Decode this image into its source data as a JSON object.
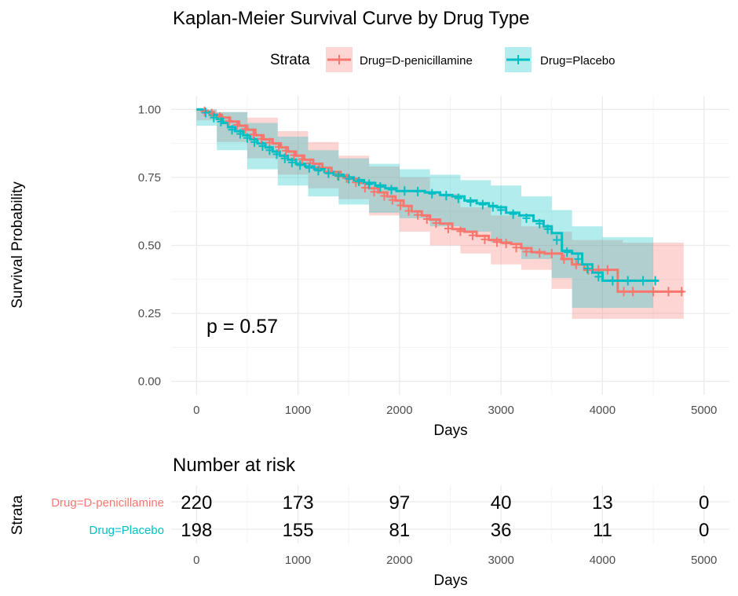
{
  "chart_data": [
    {
      "type": "line",
      "title": "Kaplan-Meier Survival Curve by Drug Type",
      "xlabel": "Days",
      "ylabel": "Survival Probability",
      "xlim": [
        -250,
        5250
      ],
      "ylim": [
        -0.05,
        1.05
      ],
      "x_ticks": [
        "0",
        "1000",
        "2000",
        "3000",
        "4000",
        "5000"
      ],
      "y_ticks": [
        "0.00",
        "0.25",
        "0.50",
        "0.75",
        "1.00"
      ],
      "grid": true,
      "legend": {
        "title": "Strata",
        "position": "top"
      },
      "annotation": "p = 0.57",
      "series": [
        {
          "name": "Drug=D-penicillamine",
          "color": "#F8766D",
          "steps": [
            [
              0,
              1.0
            ],
            [
              50,
              0.995
            ],
            [
              110,
              0.99
            ],
            [
              170,
              0.98
            ],
            [
              250,
              0.97
            ],
            [
              330,
              0.955
            ],
            [
              420,
              0.94
            ],
            [
              500,
              0.925
            ],
            [
              580,
              0.905
            ],
            [
              660,
              0.89
            ],
            [
              750,
              0.875
            ],
            [
              830,
              0.86
            ],
            [
              900,
              0.845
            ],
            [
              980,
              0.83
            ],
            [
              1060,
              0.815
            ],
            [
              1150,
              0.8
            ],
            [
              1240,
              0.785
            ],
            [
              1330,
              0.77
            ],
            [
              1420,
              0.755
            ],
            [
              1500,
              0.745
            ],
            [
              1600,
              0.73
            ],
            [
              1700,
              0.71
            ],
            [
              1790,
              0.695
            ],
            [
              1880,
              0.68
            ],
            [
              1960,
              0.665
            ],
            [
              2040,
              0.645
            ],
            [
              2120,
              0.625
            ],
            [
              2220,
              0.61
            ],
            [
              2300,
              0.595
            ],
            [
              2400,
              0.58
            ],
            [
              2520,
              0.56
            ],
            [
              2640,
              0.55
            ],
            [
              2760,
              0.535
            ],
            [
              2880,
              0.52
            ],
            [
              3000,
              0.51
            ],
            [
              3100,
              0.505
            ],
            [
              3200,
              0.49
            ],
            [
              3300,
              0.475
            ],
            [
              3430,
              0.47
            ],
            [
              3600,
              0.45
            ],
            [
              3700,
              0.43
            ],
            [
              3820,
              0.41
            ],
            [
              4150,
              0.33
            ],
            [
              4800,
              0.33
            ]
          ],
          "lower": [
            [
              0,
              1.0
            ],
            [
              200,
              0.96
            ],
            [
              500,
              0.88
            ],
            [
              800,
              0.82
            ],
            [
              1100,
              0.76
            ],
            [
              1400,
              0.71
            ],
            [
              1700,
              0.67
            ],
            [
              2000,
              0.61
            ],
            [
              2300,
              0.55
            ],
            [
              2600,
              0.5
            ],
            [
              2900,
              0.47
            ],
            [
              3200,
              0.43
            ],
            [
              3500,
              0.41
            ],
            [
              3700,
              0.34
            ],
            [
              4200,
              0.23
            ],
            [
              4800,
              0.23
            ]
          ],
          "upper": [
            [
              0,
              1.0
            ],
            [
              200,
              0.99
            ],
            [
              500,
              0.97
            ],
            [
              800,
              0.92
            ],
            [
              1100,
              0.88
            ],
            [
              1400,
              0.83
            ],
            [
              1700,
              0.79
            ],
            [
              2000,
              0.75
            ],
            [
              2300,
              0.69
            ],
            [
              2600,
              0.64
            ],
            [
              2900,
              0.61
            ],
            [
              3200,
              0.57
            ],
            [
              3500,
              0.55
            ],
            [
              3700,
              0.52
            ],
            [
              4200,
              0.51
            ],
            [
              4800,
              0.51
            ]
          ],
          "censor_marks": [
            [
              80,
              0.993
            ],
            [
              150,
              0.985
            ],
            [
              230,
              0.972
            ],
            [
              320,
              0.958
            ],
            [
              400,
              0.943
            ],
            [
              480,
              0.928
            ],
            [
              560,
              0.908
            ],
            [
              640,
              0.892
            ],
            [
              720,
              0.878
            ],
            [
              810,
              0.862
            ],
            [
              880,
              0.848
            ],
            [
              960,
              0.832
            ],
            [
              1040,
              0.817
            ],
            [
              1120,
              0.802
            ],
            [
              1210,
              0.787
            ],
            [
              1300,
              0.772
            ],
            [
              1390,
              0.757
            ],
            [
              1480,
              0.747
            ],
            [
              1570,
              0.732
            ],
            [
              1660,
              0.712
            ],
            [
              1750,
              0.697
            ],
            [
              1850,
              0.682
            ],
            [
              1930,
              0.667
            ],
            [
              2010,
              0.647
            ],
            [
              2090,
              0.627
            ],
            [
              2180,
              0.612
            ],
            [
              2270,
              0.597
            ],
            [
              2360,
              0.582
            ],
            [
              2480,
              0.562
            ],
            [
              2600,
              0.552
            ],
            [
              2720,
              0.537
            ],
            [
              2840,
              0.522
            ],
            [
              2960,
              0.512
            ],
            [
              3050,
              0.507
            ],
            [
              3150,
              0.492
            ],
            [
              3250,
              0.477
            ],
            [
              3380,
              0.472
            ],
            [
              3500,
              0.47
            ],
            [
              3620,
              0.45
            ],
            [
              3740,
              0.43
            ],
            [
              3860,
              0.41
            ],
            [
              3960,
              0.41
            ],
            [
              4050,
              0.41
            ],
            [
              4210,
              0.33
            ],
            [
              4300,
              0.33
            ],
            [
              4500,
              0.33
            ],
            [
              4650,
              0.33
            ],
            [
              4780,
              0.33
            ]
          ]
        },
        {
          "name": "Drug=Placebo",
          "color": "#00BFC4",
          "steps": [
            [
              0,
              1.0
            ],
            [
              60,
              0.99
            ],
            [
              130,
              0.98
            ],
            [
              200,
              0.965
            ],
            [
              260,
              0.95
            ],
            [
              310,
              0.935
            ],
            [
              380,
              0.92
            ],
            [
              460,
              0.905
            ],
            [
              530,
              0.89
            ],
            [
              600,
              0.875
            ],
            [
              680,
              0.86
            ],
            [
              750,
              0.845
            ],
            [
              820,
              0.83
            ],
            [
              900,
              0.815
            ],
            [
              980,
              0.8
            ],
            [
              1070,
              0.79
            ],
            [
              1160,
              0.78
            ],
            [
              1260,
              0.77
            ],
            [
              1350,
              0.76
            ],
            [
              1450,
              0.75
            ],
            [
              1550,
              0.74
            ],
            [
              1650,
              0.73
            ],
            [
              1760,
              0.72
            ],
            [
              1860,
              0.71
            ],
            [
              1970,
              0.7
            ],
            [
              2100,
              0.7
            ],
            [
              2250,
              0.695
            ],
            [
              2400,
              0.685
            ],
            [
              2520,
              0.68
            ],
            [
              2640,
              0.665
            ],
            [
              2760,
              0.655
            ],
            [
              2880,
              0.645
            ],
            [
              2960,
              0.64
            ],
            [
              3050,
              0.62
            ],
            [
              3180,
              0.61
            ],
            [
              3320,
              0.59
            ],
            [
              3420,
              0.57
            ],
            [
              3500,
              0.545
            ],
            [
              3600,
              0.48
            ],
            [
              3700,
              0.47
            ],
            [
              3800,
              0.43
            ],
            [
              3900,
              0.4
            ],
            [
              4000,
              0.37
            ],
            [
              4550,
              0.37
            ]
          ],
          "lower": [
            [
              0,
              1.0
            ],
            [
              200,
              0.94
            ],
            [
              500,
              0.85
            ],
            [
              800,
              0.78
            ],
            [
              1100,
              0.72
            ],
            [
              1400,
              0.68
            ],
            [
              1700,
              0.65
            ],
            [
              2000,
              0.62
            ],
            [
              2300,
              0.6
            ],
            [
              2600,
              0.57
            ],
            [
              2900,
              0.55
            ],
            [
              3200,
              0.51
            ],
            [
              3500,
              0.45
            ],
            [
              3700,
              0.38
            ],
            [
              4000,
              0.27
            ],
            [
              4500,
              0.27
            ]
          ],
          "upper": [
            [
              0,
              1.0
            ],
            [
              200,
              0.99
            ],
            [
              500,
              0.95
            ],
            [
              800,
              0.9
            ],
            [
              1100,
              0.85
            ],
            [
              1400,
              0.82
            ],
            [
              1700,
              0.8
            ],
            [
              2000,
              0.78
            ],
            [
              2300,
              0.76
            ],
            [
              2600,
              0.74
            ],
            [
              2900,
              0.72
            ],
            [
              3200,
              0.68
            ],
            [
              3500,
              0.63
            ],
            [
              3700,
              0.57
            ],
            [
              4000,
              0.53
            ],
            [
              4500,
              0.53
            ]
          ],
          "censor_marks": [
            [
              90,
              0.988
            ],
            [
              170,
              0.97
            ],
            [
              240,
              0.955
            ],
            [
              350,
              0.925
            ],
            [
              430,
              0.91
            ],
            [
              500,
              0.895
            ],
            [
              570,
              0.88
            ],
            [
              650,
              0.865
            ],
            [
              720,
              0.85
            ],
            [
              790,
              0.835
            ],
            [
              870,
              0.82
            ],
            [
              940,
              0.805
            ],
            [
              1020,
              0.795
            ],
            [
              1110,
              0.785
            ],
            [
              1200,
              0.775
            ],
            [
              1300,
              0.765
            ],
            [
              1400,
              0.755
            ],
            [
              1500,
              0.745
            ],
            [
              1600,
              0.735
            ],
            [
              1700,
              0.725
            ],
            [
              1810,
              0.715
            ],
            [
              1920,
              0.705
            ],
            [
              2050,
              0.7
            ],
            [
              2180,
              0.698
            ],
            [
              2320,
              0.69
            ],
            [
              2460,
              0.683
            ],
            [
              2580,
              0.673
            ],
            [
              2700,
              0.66
            ],
            [
              2820,
              0.65
            ],
            [
              2920,
              0.642
            ],
            [
              3000,
              0.63
            ],
            [
              3120,
              0.615
            ],
            [
              3250,
              0.6
            ],
            [
              3380,
              0.58
            ],
            [
              3460,
              0.56
            ],
            [
              3550,
              0.52
            ],
            [
              3650,
              0.475
            ],
            [
              3760,
              0.45
            ],
            [
              3850,
              0.415
            ],
            [
              3960,
              0.385
            ],
            [
              4100,
              0.37
            ],
            [
              4250,
              0.37
            ],
            [
              4400,
              0.37
            ],
            [
              4520,
              0.37
            ]
          ]
        }
      ]
    },
    {
      "type": "table",
      "title": "Number at risk",
      "xlabel": "Days",
      "ylabel": "Strata",
      "x_ticks": [
        "0",
        "1000",
        "2000",
        "3000",
        "4000",
        "5000"
      ],
      "rows": [
        {
          "name": "Drug=D-penicillamine",
          "color": "#F8766D",
          "values": [
            "220",
            "173",
            "97",
            "40",
            "13",
            "0"
          ]
        },
        {
          "name": "Drug=Placebo",
          "color": "#00BFC4",
          "values": [
            "198",
            "155",
            "81",
            "36",
            "11",
            "0"
          ]
        }
      ]
    }
  ]
}
